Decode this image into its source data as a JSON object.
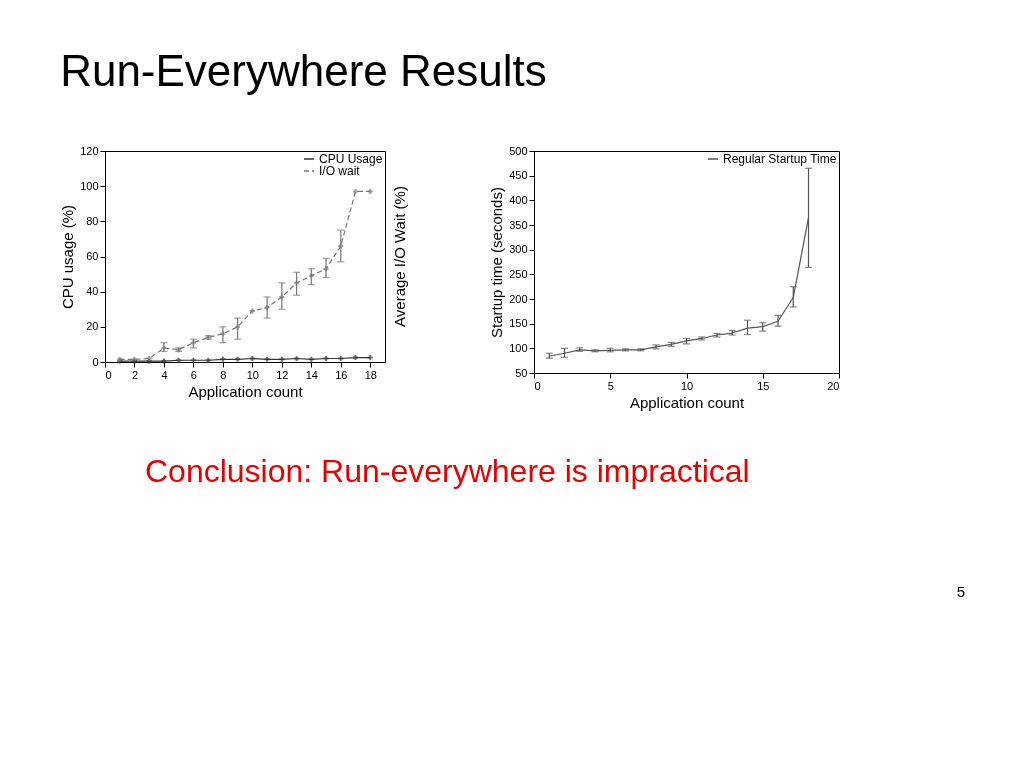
{
  "chart_data": [
    {
      "type": "line",
      "title": "Run-Everywhere Results",
      "xlabel": "Application count",
      "ylabel": "CPU usage (%)",
      "y2label": "Average I/O Wait (%)",
      "x": [
        1,
        2,
        3,
        4,
        5,
        6,
        7,
        8,
        9,
        10,
        11,
        12,
        13,
        14,
        15,
        16,
        17,
        18
      ],
      "xlim": [
        0,
        19
      ],
      "xticks": [
        0,
        2,
        4,
        6,
        8,
        10,
        12,
        14,
        16,
        18
      ],
      "ylim": [
        0,
        120
      ],
      "yticks": [
        0,
        20,
        40,
        60,
        80,
        100,
        120
      ],
      "grid": false,
      "legend": "top right",
      "marker": "cross",
      "series": [
        {
          "name": "CPU Usage",
          "color": "#333333",
          "line_style": "solid",
          "values": [
            0.5,
            0.5,
            0.5,
            0.5,
            1,
            1,
            1,
            1.5,
            1.5,
            2,
            1.5,
            1.5,
            2,
            1.5,
            2,
            2,
            2.5,
            2.5
          ]
        },
        {
          "name": "I/O wait",
          "color": "#777777",
          "line_style": "dashed",
          "values": [
            1.5,
            1.5,
            2,
            8,
            7,
            11,
            14,
            16,
            20,
            29,
            31,
            37,
            45,
            49,
            53,
            66,
            97,
            97
          ],
          "errors": [
            null,
            null,
            null,
            [
              6,
              11
            ],
            [
              6,
              8
            ],
            [
              8,
              13
            ],
            [
              13,
              15
            ],
            [
              11,
              20
            ],
            [
              13,
              25
            ],
            null,
            [
              25,
              37
            ],
            [
              30,
              45
            ],
            [
              38,
              51
            ],
            [
              44,
              53
            ],
            [
              48,
              59
            ],
            [
              57,
              75
            ],
            null,
            null
          ]
        }
      ]
    },
    {
      "type": "line",
      "xlabel": "Application count",
      "ylabel": "Startup time (seconds)",
      "x": [
        1,
        2,
        3,
        4,
        5,
        6,
        7,
        8,
        9,
        10,
        11,
        12,
        13,
        14,
        15,
        16,
        17,
        18
      ],
      "xlim": [
        0,
        20
      ],
      "xticks": [
        0,
        5,
        10,
        15,
        20
      ],
      "ylim": [
        50,
        500
      ],
      "yticks": [
        50,
        100,
        150,
        200,
        250,
        300,
        350,
        400,
        450,
        500
      ],
      "grid": false,
      "legend": "top right",
      "marker": "none",
      "series": [
        {
          "name": "Regular Startup Time",
          "color": "#555555",
          "line_style": "solid",
          "values": [
            84,
            90,
            97,
            95,
            96,
            97,
            97,
            103,
            108,
            115,
            120,
            127,
            131,
            141,
            144,
            155,
            203,
            365
          ],
          "errors": [
            [
              80,
              90
            ],
            [
              82,
              100
            ],
            [
              94,
              101
            ],
            [
              93,
              97
            ],
            [
              93,
              100
            ],
            [
              95,
              99
            ],
            [
              95,
              99
            ],
            [
              99,
              107
            ],
            [
              104,
              112
            ],
            [
              109,
              120
            ],
            [
              117,
              123
            ],
            [
              123,
              130
            ],
            [
              127,
              136
            ],
            [
              128,
              157
            ],
            [
              135,
              152
            ],
            [
              145,
              167
            ],
            [
              184,
              225
            ],
            [
              264,
              465
            ]
          ]
        }
      ],
      "annotations": [
        "Conclusion: Run-everywhere is impractical",
        "5"
      ]
    }
  ]
}
